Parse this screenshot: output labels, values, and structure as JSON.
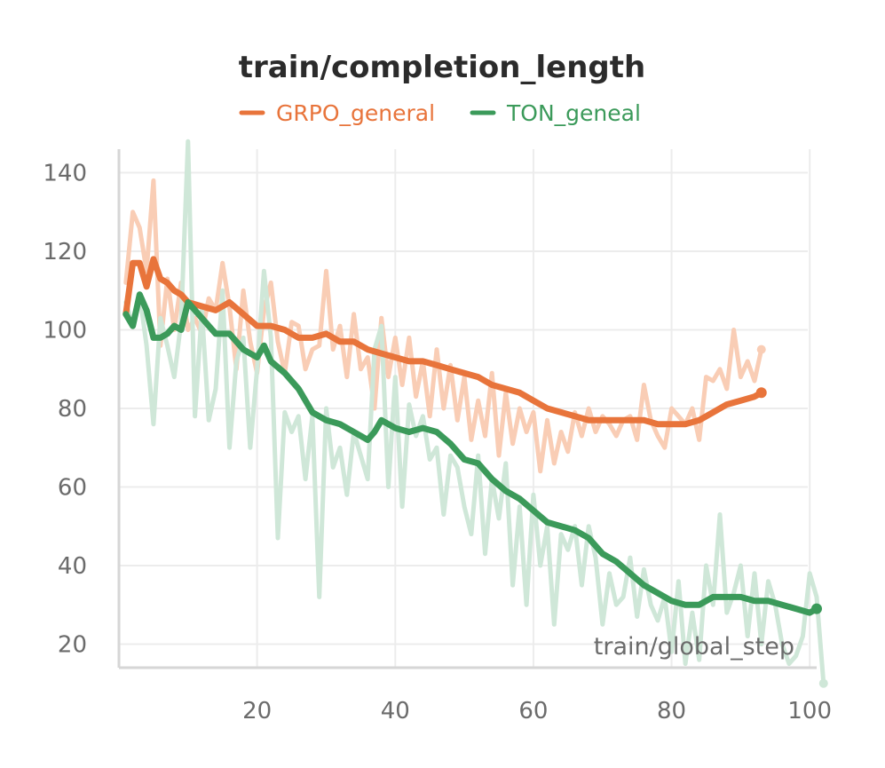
{
  "chart_data": {
    "type": "line",
    "title": "train/completion_length",
    "xlabel": "train/global_step",
    "ylabel": "",
    "xlim": [
      0,
      101
    ],
    "ylim": [
      14,
      146
    ],
    "xticks": [
      20,
      40,
      60,
      80,
      100
    ],
    "yticks": [
      20,
      40,
      60,
      80,
      100,
      120,
      140
    ],
    "grid": true,
    "legend": "top-center",
    "series": [
      {
        "name": "GRPO_general",
        "color": "#e8743b",
        "raw_color": "#f9cdb5",
        "smoothed_x": [
          1,
          2,
          3,
          4,
          5,
          6,
          7,
          8,
          9,
          10,
          12,
          14,
          16,
          18,
          20,
          22,
          24,
          26,
          28,
          30,
          32,
          34,
          36,
          38,
          40,
          42,
          44,
          46,
          48,
          50,
          52,
          54,
          56,
          58,
          60,
          62,
          64,
          66,
          68,
          70,
          72,
          74,
          76,
          78,
          80,
          82,
          84,
          86,
          88,
          90,
          92,
          93
        ],
        "smoothed_y": [
          104,
          117,
          117,
          111,
          118,
          113,
          112,
          110,
          109,
          107,
          106,
          105,
          107,
          104,
          101,
          101,
          100,
          98,
          98,
          99,
          97,
          97,
          95,
          94,
          93,
          92,
          92,
          91,
          90,
          89,
          88,
          86,
          85,
          84,
          82,
          80,
          79,
          78,
          77,
          77,
          77,
          77,
          77,
          76,
          76,
          76,
          77,
          79,
          81,
          82,
          83,
          84
        ],
        "raw_x": [
          1,
          2,
          3,
          4,
          5,
          6,
          7,
          8,
          9,
          10,
          11,
          12,
          13,
          14,
          15,
          16,
          17,
          18,
          19,
          20,
          21,
          22,
          23,
          24,
          25,
          26,
          27,
          28,
          29,
          30,
          31,
          32,
          33,
          34,
          35,
          36,
          37,
          38,
          39,
          40,
          41,
          42,
          43,
          44,
          45,
          46,
          47,
          48,
          49,
          50,
          51,
          52,
          53,
          54,
          55,
          56,
          57,
          58,
          59,
          60,
          61,
          62,
          63,
          64,
          65,
          66,
          67,
          68,
          69,
          70,
          71,
          72,
          73,
          74,
          75,
          76,
          77,
          78,
          79,
          80,
          81,
          82,
          83,
          84,
          85,
          86,
          87,
          88,
          89,
          90,
          91,
          92,
          93
        ],
        "raw_y": [
          112,
          130,
          126,
          115,
          138,
          96,
          113,
          100,
          112,
          100,
          103,
          99,
          108,
          105,
          117,
          106,
          90,
          110,
          97,
          89,
          105,
          112,
          97,
          89,
          102,
          101,
          90,
          95,
          96,
          115,
          95,
          101,
          88,
          104,
          90,
          93,
          80,
          103,
          88,
          98,
          86,
          98,
          83,
          92,
          78,
          95,
          80,
          91,
          77,
          88,
          72,
          82,
          73,
          89,
          68,
          84,
          71,
          80,
          74,
          79,
          64,
          77,
          66,
          74,
          69,
          79,
          73,
          80,
          74,
          78,
          76,
          73,
          77,
          78,
          72,
          86,
          77,
          73,
          70,
          80,
          78,
          76,
          80,
          72,
          88,
          87,
          90,
          85,
          100,
          88,
          92,
          87,
          95
        ]
      },
      {
        "name": "TON_geneal",
        "color": "#3b9a5a",
        "raw_color": "#cfe7d8",
        "smoothed_x": [
          1,
          2,
          3,
          4,
          5,
          6,
          7,
          8,
          9,
          10,
          12,
          14,
          16,
          18,
          20,
          21,
          22,
          24,
          26,
          28,
          30,
          32,
          34,
          36,
          37,
          38,
          40,
          42,
          44,
          46,
          48,
          50,
          52,
          54,
          56,
          58,
          60,
          62,
          64,
          66,
          68,
          70,
          72,
          74,
          76,
          78,
          80,
          82,
          84,
          86,
          88,
          90,
          92,
          94,
          96,
          98,
          100,
          101
        ],
        "smoothed_y": [
          104,
          101,
          109,
          105,
          98,
          98,
          99,
          101,
          100,
          107,
          103,
          99,
          99,
          95,
          93,
          96,
          92,
          89,
          85,
          79,
          77,
          76,
          74,
          72,
          74,
          77,
          75,
          74,
          75,
          74,
          71,
          67,
          66,
          62,
          59,
          57,
          54,
          51,
          50,
          49,
          47,
          43,
          41,
          38,
          35,
          33,
          31,
          30,
          30,
          32,
          32,
          32,
          31,
          31,
          30,
          29,
          28,
          29
        ],
        "raw_x": [
          1,
          2,
          3,
          4,
          5,
          6,
          7,
          8,
          9,
          10,
          11,
          12,
          13,
          14,
          15,
          16,
          17,
          18,
          19,
          20,
          21,
          22,
          23,
          24,
          25,
          26,
          27,
          28,
          29,
          30,
          31,
          32,
          33,
          34,
          35,
          36,
          37,
          38,
          39,
          40,
          41,
          42,
          43,
          44,
          45,
          46,
          47,
          48,
          49,
          50,
          51,
          52,
          53,
          54,
          55,
          56,
          57,
          58,
          59,
          60,
          61,
          62,
          63,
          64,
          65,
          66,
          67,
          68,
          69,
          70,
          71,
          72,
          73,
          74,
          75,
          76,
          77,
          78,
          79,
          80,
          81,
          82,
          83,
          84,
          85,
          86,
          87,
          88,
          89,
          90,
          91,
          92,
          93,
          94,
          95,
          96,
          97,
          98,
          99,
          100,
          101,
          102
        ],
        "raw_y": [
          107,
          101,
          109,
          96,
          76,
          103,
          96,
          88,
          102,
          148,
          78,
          105,
          77,
          85,
          110,
          70,
          92,
          98,
          70,
          90,
          115,
          98,
          47,
          79,
          74,
          78,
          62,
          78,
          32,
          80,
          65,
          70,
          58,
          74,
          68,
          62,
          95,
          101,
          60,
          88,
          55,
          81,
          73,
          78,
          67,
          70,
          53,
          68,
          65,
          55,
          48,
          68,
          43,
          62,
          52,
          66,
          35,
          55,
          30,
          58,
          40,
          50,
          25,
          48,
          44,
          50,
          35,
          50,
          42,
          25,
          38,
          30,
          32,
          42,
          27,
          39,
          30,
          26,
          32,
          18,
          36,
          15,
          28,
          16,
          40,
          30,
          53,
          28,
          33,
          40,
          22,
          38,
          20,
          36,
          30,
          20,
          15,
          17,
          22,
          38,
          32,
          10
        ]
      }
    ]
  }
}
